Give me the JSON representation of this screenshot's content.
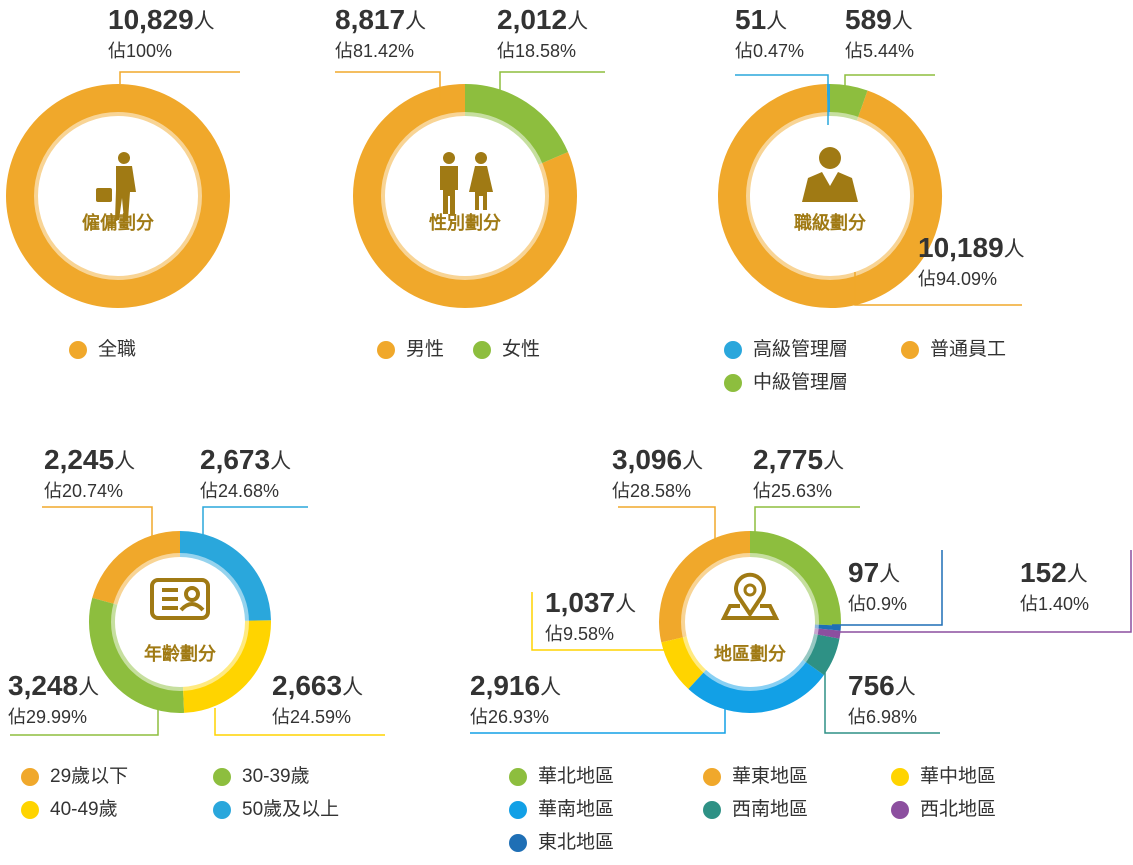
{
  "chart_data": [
    {
      "type": "pie",
      "title": "僱傭劃分",
      "categories": [
        "全職"
      ],
      "colors": [
        "#f0a82b"
      ],
      "values": [
        10829
      ],
      "value_labels": [
        "10,829"
      ],
      "unit": "人",
      "share_labels": [
        "佔100%"
      ]
    },
    {
      "type": "pie",
      "title": "性別劃分",
      "categories": [
        "男性",
        "女性"
      ],
      "colors": [
        "#f0a82b",
        "#8dbe3e"
      ],
      "values": [
        8817,
        2012
      ],
      "value_labels": [
        "8,817",
        "2,012"
      ],
      "unit": "人",
      "share_labels": [
        "佔81.42%",
        "佔18.58%"
      ]
    },
    {
      "type": "pie",
      "title": "職級劃分",
      "categories": [
        "高級管理層",
        "普通員工",
        "中級管理層"
      ],
      "colors": [
        "#2aa7dc",
        "#f0a82b",
        "#8dbe3e"
      ],
      "values": [
        51,
        10189,
        589
      ],
      "value_labels": [
        "51",
        "10,189",
        "589"
      ],
      "unit": "人",
      "share_labels": [
        "佔0.47%",
        "佔94.09%",
        "佔5.44%"
      ]
    },
    {
      "type": "pie",
      "title": "年齡劃分",
      "categories": [
        "29歲以下",
        "30-39歲",
        "40-49歲",
        "50歲及以上"
      ],
      "colors": [
        "#f0a82b",
        "#8dbe3e",
        "#ffd400",
        "#2aa7dc"
      ],
      "values": [
        2245,
        3248,
        2663,
        2673
      ],
      "value_labels": [
        "2,245",
        "3,248",
        "2,663",
        "2,673"
      ],
      "unit": "人",
      "share_labels": [
        "佔20.74%",
        "佔29.99%",
        "佔24.59%",
        "佔24.68%"
      ]
    },
    {
      "type": "pie",
      "title": "地區劃分",
      "categories": [
        "華北地區",
        "華東地區",
        "華中地區",
        "華南地區",
        "西南地區",
        "西北地區",
        "東北地區"
      ],
      "colors": [
        "#8dbe3e",
        "#f0a82b",
        "#ffd400",
        "#12a0e6",
        "#2e9185",
        "#8c4f9f",
        "#1f6fb5"
      ],
      "values": [
        2775,
        3096,
        1037,
        2916,
        756,
        152,
        97
      ],
      "value_labels": [
        "2,775",
        "3,096",
        "1,037",
        "2,916",
        "756",
        "152",
        "97"
      ],
      "unit": "人",
      "share_labels": [
        "佔25.63%",
        "佔28.58%",
        "佔9.58%",
        "佔26.93%",
        "佔6.98%",
        "佔1.40%",
        "佔0.9%"
      ]
    }
  ]
}
